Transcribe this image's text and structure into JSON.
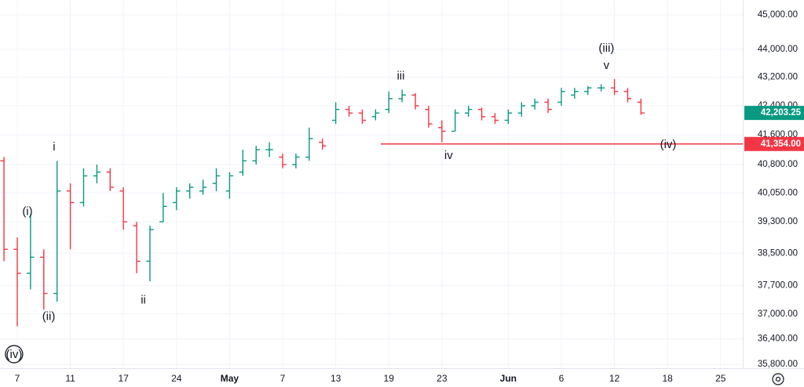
{
  "chart_data": {
    "type": "ohlc",
    "x": [
      -1,
      0,
      1,
      2,
      3,
      4,
      5,
      6,
      7,
      8,
      9,
      10,
      11,
      12,
      13,
      14,
      15,
      16,
      17,
      18,
      19,
      20,
      21,
      22,
      23,
      24,
      25,
      26,
      27,
      28,
      29,
      30,
      31,
      32,
      33,
      34,
      35,
      36,
      37,
      38,
      39,
      40,
      41,
      42,
      43,
      44,
      45,
      46,
      47
    ],
    "open": [
      40900,
      38600,
      38000,
      38400,
      37500,
      40100,
      39800,
      40500,
      40600,
      40100,
      39200,
      38300,
      39300,
      39800,
      40100,
      40100,
      40300,
      40100,
      40600,
      40900,
      41200,
      41000,
      40800,
      41000,
      41400,
      42000,
      42300,
      42200,
      42100,
      42300,
      42600,
      42700,
      42300,
      41800,
      41700,
      42200,
      42300,
      42100,
      42000,
      42200,
      42400,
      42500,
      42500,
      42700,
      42800,
      42900,
      42900,
      42800,
      42500
    ],
    "high": [
      41000,
      38900,
      39500,
      38600,
      40900,
      40300,
      40700,
      40800,
      40700,
      40200,
      39300,
      39200,
      40050,
      40200,
      40300,
      40400,
      40700,
      40600,
      41200,
      41300,
      41400,
      41100,
      41100,
      41800,
      41500,
      42500,
      42400,
      42300,
      42300,
      42800,
      42850,
      42750,
      42400,
      42000,
      42300,
      42400,
      42350,
      42200,
      42300,
      42500,
      42600,
      42600,
      42900,
      42900,
      42950,
      43000,
      43150,
      42900,
      42600
    ],
    "low": [
      38300,
      36700,
      37600,
      37100,
      37300,
      38600,
      39700,
      40300,
      40100,
      39100,
      38000,
      37800,
      39300,
      39600,
      39900,
      40000,
      40100,
      39900,
      40500,
      40800,
      41000,
      40700,
      40700,
      40900,
      41200,
      41900,
      42100,
      41900,
      42000,
      42200,
      42500,
      42300,
      41800,
      41400,
      41700,
      42100,
      42000,
      41900,
      41900,
      42100,
      42300,
      42200,
      42400,
      42600,
      42700,
      42800,
      42700,
      42500,
      42150
    ],
    "close": [
      38600,
      38000,
      38400,
      37500,
      40100,
      39800,
      40500,
      40600,
      40200,
      39300,
      38300,
      39100,
      39700,
      40100,
      40200,
      40200,
      40500,
      40500,
      40900,
      41200,
      41200,
      40800,
      41000,
      41500,
      41300,
      42300,
      42200,
      42000,
      42200,
      42600,
      42700,
      42400,
      41900,
      41700,
      42200,
      42300,
      42100,
      42000,
      42200,
      42400,
      42500,
      42300,
      42800,
      42800,
      42900,
      42900,
      42800,
      42600,
      42203.25
    ],
    "up_color": "#089981",
    "down_color": "#f23645",
    "log_scale": true,
    "grid": true,
    "xlim": [
      -1.3,
      54.67
    ],
    "xticks": [
      {
        "value": 0,
        "label": "7"
      },
      {
        "value": 4,
        "label": "11"
      },
      {
        "value": 8,
        "label": "17"
      },
      {
        "value": 12,
        "label": "24"
      },
      {
        "value": 16,
        "label": "May"
      },
      {
        "value": 20,
        "label": "7"
      },
      {
        "value": 24,
        "label": "13"
      },
      {
        "value": 28,
        "label": "19"
      },
      {
        "value": 32,
        "label": "23"
      },
      {
        "value": 37,
        "label": "Jun"
      },
      {
        "value": 41,
        "label": "6"
      },
      {
        "value": 45,
        "label": "12"
      },
      {
        "value": 49,
        "label": "18"
      },
      {
        "value": 53,
        "label": "25"
      }
    ],
    "ylim": [
      35710,
      45440
    ],
    "yticks": [
      {
        "value": 45000,
        "label": "45,000.00"
      },
      {
        "value": 44000,
        "label": "44,000.00"
      },
      {
        "value": 43200,
        "label": "43,200.00"
      },
      {
        "value": 42400,
        "label": "42,400.00"
      },
      {
        "value": 41600,
        "label": "41,600.00"
      },
      {
        "value": 40800,
        "label": "40,800.00"
      },
      {
        "value": 40050,
        "label": "40,050.00"
      },
      {
        "value": 39300,
        "label": "39,300.00"
      },
      {
        "value": 38500,
        "label": "38,500.00"
      },
      {
        "value": 37700,
        "label": "37,700.00"
      },
      {
        "value": 37000,
        "label": "37,000.00"
      },
      {
        "value": 36400,
        "label": "36,400.00"
      },
      {
        "value": 35800,
        "label": "35,800.00"
      }
    ],
    "last_price": {
      "value": 42203.25,
      "label": "42,203.25",
      "color": "#089981"
    },
    "hline": {
      "value": 41354,
      "label": "41,354.00",
      "color": "#f23645",
      "x_start": 27.4
    },
    "annotations": [
      {
        "text": "(iv)",
        "x": -0.24,
        "y": 36040,
        "circled": true
      },
      {
        "text": "(i)",
        "x": 0.77,
        "y": 39580
      },
      {
        "text": "(ii)",
        "x": 2.37,
        "y": 36950
      },
      {
        "text": "i",
        "x": 2.78,
        "y": 41280
      },
      {
        "text": "ii",
        "x": 9.5,
        "y": 37350
      },
      {
        "text": "iii",
        "x": 28.9,
        "y": 43250
      },
      {
        "text": "iv",
        "x": 32.5,
        "y": 41050
      },
      {
        "text": "(iii)",
        "x": 44.4,
        "y": 44040
      },
      {
        "text": "v",
        "x": 44.4,
        "y": 43550
      },
      {
        "text": "(iv)",
        "x": 49.05,
        "y": 41350
      }
    ]
  }
}
